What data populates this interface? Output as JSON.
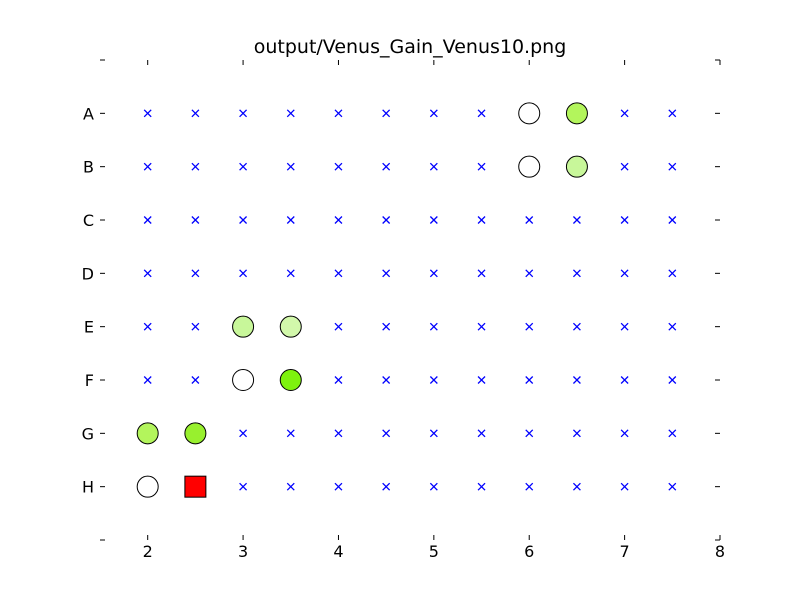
{
  "chart_data": {
    "type": "scatter",
    "title": "output/Venus_Gain_Venus10.png",
    "xlabel": "",
    "ylabel": "",
    "xlim": [
      1.5,
      8
    ],
    "x_ticks": [
      2,
      3,
      4,
      5,
      6,
      7,
      8
    ],
    "rows": [
      "A",
      "B",
      "C",
      "D",
      "E",
      "F",
      "G",
      "H"
    ],
    "grid_x": [
      2,
      2.5,
      3,
      3.5,
      4,
      4.5,
      5,
      5.5,
      6,
      6.5,
      7,
      7.5
    ],
    "empty_marker": {
      "symbol": "x",
      "color": "#0000ff"
    },
    "points": [
      {
        "row": "A",
        "x": 6,
        "marker": "circle",
        "color": "#ffffff"
      },
      {
        "row": "A",
        "x": 6.5,
        "marker": "circle",
        "color": "#b3f55c"
      },
      {
        "row": "B",
        "x": 6,
        "marker": "circle",
        "color": "#ffffff"
      },
      {
        "row": "B",
        "x": 6.5,
        "marker": "circle",
        "color": "#c8f79a"
      },
      {
        "row": "E",
        "x": 3,
        "marker": "circle",
        "color": "#c8f79a"
      },
      {
        "row": "E",
        "x": 3.5,
        "marker": "circle",
        "color": "#d2f8ab"
      },
      {
        "row": "F",
        "x": 3,
        "marker": "circle",
        "color": "#ffffff"
      },
      {
        "row": "F",
        "x": 3.5,
        "marker": "circle",
        "color": "#7ef20e"
      },
      {
        "row": "G",
        "x": 2,
        "marker": "circle",
        "color": "#b3f55c"
      },
      {
        "row": "G",
        "x": 2.5,
        "marker": "circle",
        "color": "#98f02e"
      },
      {
        "row": "H",
        "x": 2,
        "marker": "circle",
        "color": "#ffffff"
      },
      {
        "row": "H",
        "x": 2.5,
        "marker": "square",
        "color": "#ff0000"
      }
    ]
  }
}
